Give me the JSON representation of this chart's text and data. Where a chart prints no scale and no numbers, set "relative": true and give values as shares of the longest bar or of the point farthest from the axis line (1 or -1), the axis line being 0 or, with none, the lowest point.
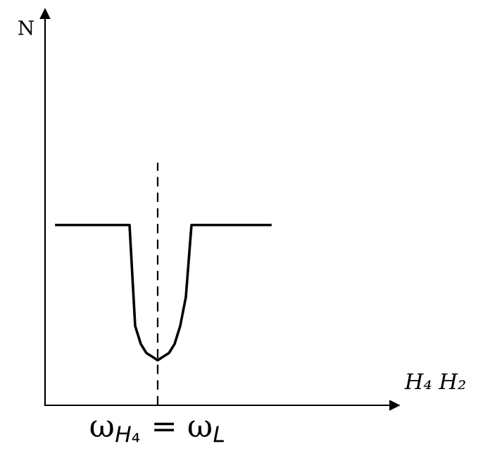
{
  "chart_data": {
    "type": "line",
    "relative": true,
    "grid": false,
    "legend": false,
    "marker": "none",
    "line_style": "solid",
    "categories": [
      null,
      null,
      null,
      null,
      null,
      null,
      null,
      null,
      null,
      null,
      null,
      null,
      null,
      null,
      null,
      null,
      null,
      null,
      null,
      null,
      null,
      null,
      null,
      null,
      null,
      null,
      null,
      null,
      null,
      null,
      null,
      null,
      null,
      null,
      null,
      null,
      null,
      null,
      null
    ],
    "series": [
      {
        "color": "#000000",
        "values": [
          1,
          1,
          1,
          1,
          1,
          1,
          1,
          1,
          1,
          1,
          1,
          1,
          1,
          1,
          0.44,
          0.34,
          0.29,
          0.27,
          0.25,
          0.27,
          0.29,
          0.34,
          0.44,
          0.6,
          1,
          1,
          1,
          1,
          1,
          1,
          1,
          1,
          1,
          1,
          1,
          1,
          1,
          1,
          1
        ]
      }
    ],
    "annotations": [
      "ω$_{H₄}$ = ω$_{L}$",
      "H₄ H₂",
      "N"
    ]
  }
}
